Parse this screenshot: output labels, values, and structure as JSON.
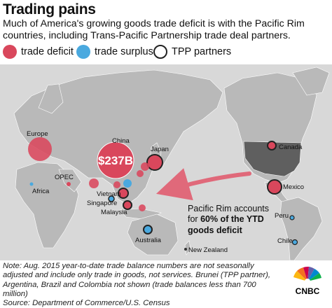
{
  "title": "Trading pains",
  "subtitle": "Much of America's growing goods trade deficit is with the Pacific Rim countries, including Trans-Pacific Partnership trade deal partners.",
  "legend": {
    "deficit": "trade deficit",
    "surplus": "trade surplus",
    "tpp": "TPP partners"
  },
  "colors": {
    "deficit": "#d9475c",
    "surplus": "#4aa9df",
    "land": "#b9b9b9",
    "us": "#5f5f5f",
    "ocean": "#d8d8d8",
    "arrow": "#e0697a"
  },
  "countries": {
    "europe": "Europe",
    "china": "China",
    "china_value": "$237B",
    "japan": "Japan",
    "canada": "Canada",
    "opec": "OPEC",
    "africa": "Africa",
    "mexico": "Mexico",
    "vietnam": "Vietnam",
    "singapore": "Singapore",
    "malaysia": "Malaysia",
    "peru": "Peru",
    "australia": "Australia",
    "chile": "Chile",
    "new_zealand": "New Zealand"
  },
  "callout": {
    "line1": "Pacific Rim accounts",
    "line2_prefix": "for ",
    "line2_bold": "60% of the YTD",
    "line3_bold": "goods deficit"
  },
  "note": "Note: Aug. 2015 year-to-date trade balance numbers are not seasonally adjusted and include only trade in goods, not services. Brunei (TPP partner), Argentina, Brazil and Colombia not shown (trade balances less than 700 million)",
  "source": "Source: Department of Commerce/U.S. Census",
  "logo_text": "CNBC",
  "logo_icon": "peacock-icon"
}
